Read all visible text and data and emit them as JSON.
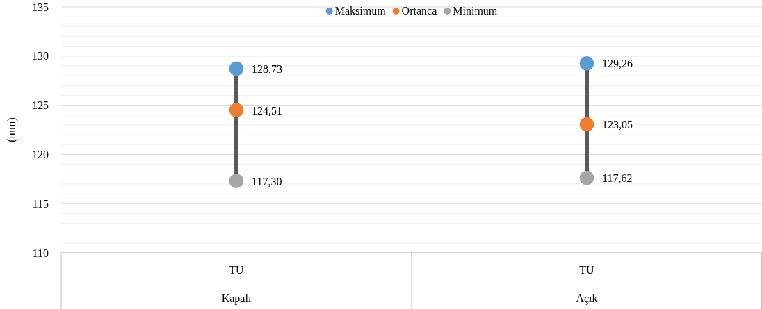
{
  "chart_data": {
    "type": "scatter",
    "ylabel": "(mm)",
    "categories": [
      "TU",
      "TU"
    ],
    "annotations": [
      "Kapalı",
      "Açık"
    ],
    "ylim": [
      110,
      135
    ],
    "yticks": [
      110,
      {
        "value": 111,
        "label": null
      },
      {
        "value": 112,
        "label": null
      },
      {
        "value": 113,
        "label": null
      },
      {
        "value": 114,
        "label": null
      },
      115,
      {
        "value": 116,
        "label": null
      },
      {
        "value": 117,
        "label": null
      },
      {
        "value": 118,
        "label": null
      },
      {
        "value": 119,
        "label": null
      },
      120,
      {
        "value": 121,
        "label": null
      },
      {
        "value": 122,
        "label": null
      },
      {
        "value": 123,
        "label": null
      },
      {
        "value": 124,
        "label": null
      },
      125,
      {
        "value": 126,
        "label": null
      },
      {
        "value": 127,
        "label": null
      },
      {
        "value": 128,
        "label": null
      },
      {
        "value": 129,
        "label": null
      },
      130,
      {
        "value": 131,
        "label": null
      },
      {
        "value": 132,
        "label": null
      },
      {
        "value": 133,
        "label": null
      },
      {
        "value": 134,
        "label": null
      },
      135
    ],
    "grid": true,
    "legend": "top",
    "marker": "circle",
    "series": [
      {
        "name": "Maksimum",
        "color": "#5b9bd5",
        "values": [
          128.73,
          129.26
        ],
        "value_labels": [
          "128,73",
          "129,26"
        ]
      },
      {
        "name": "Ortanca",
        "color": "#ed7d31",
        "values": [
          124.51,
          123.05
        ],
        "value_labels": [
          "124,51",
          "123,05"
        ]
      },
      {
        "name": "Minimum",
        "color": "#a5a5a5",
        "values": [
          117.3,
          117.62
        ],
        "value_labels": [
          "117,30",
          "117,62"
        ]
      }
    ]
  }
}
